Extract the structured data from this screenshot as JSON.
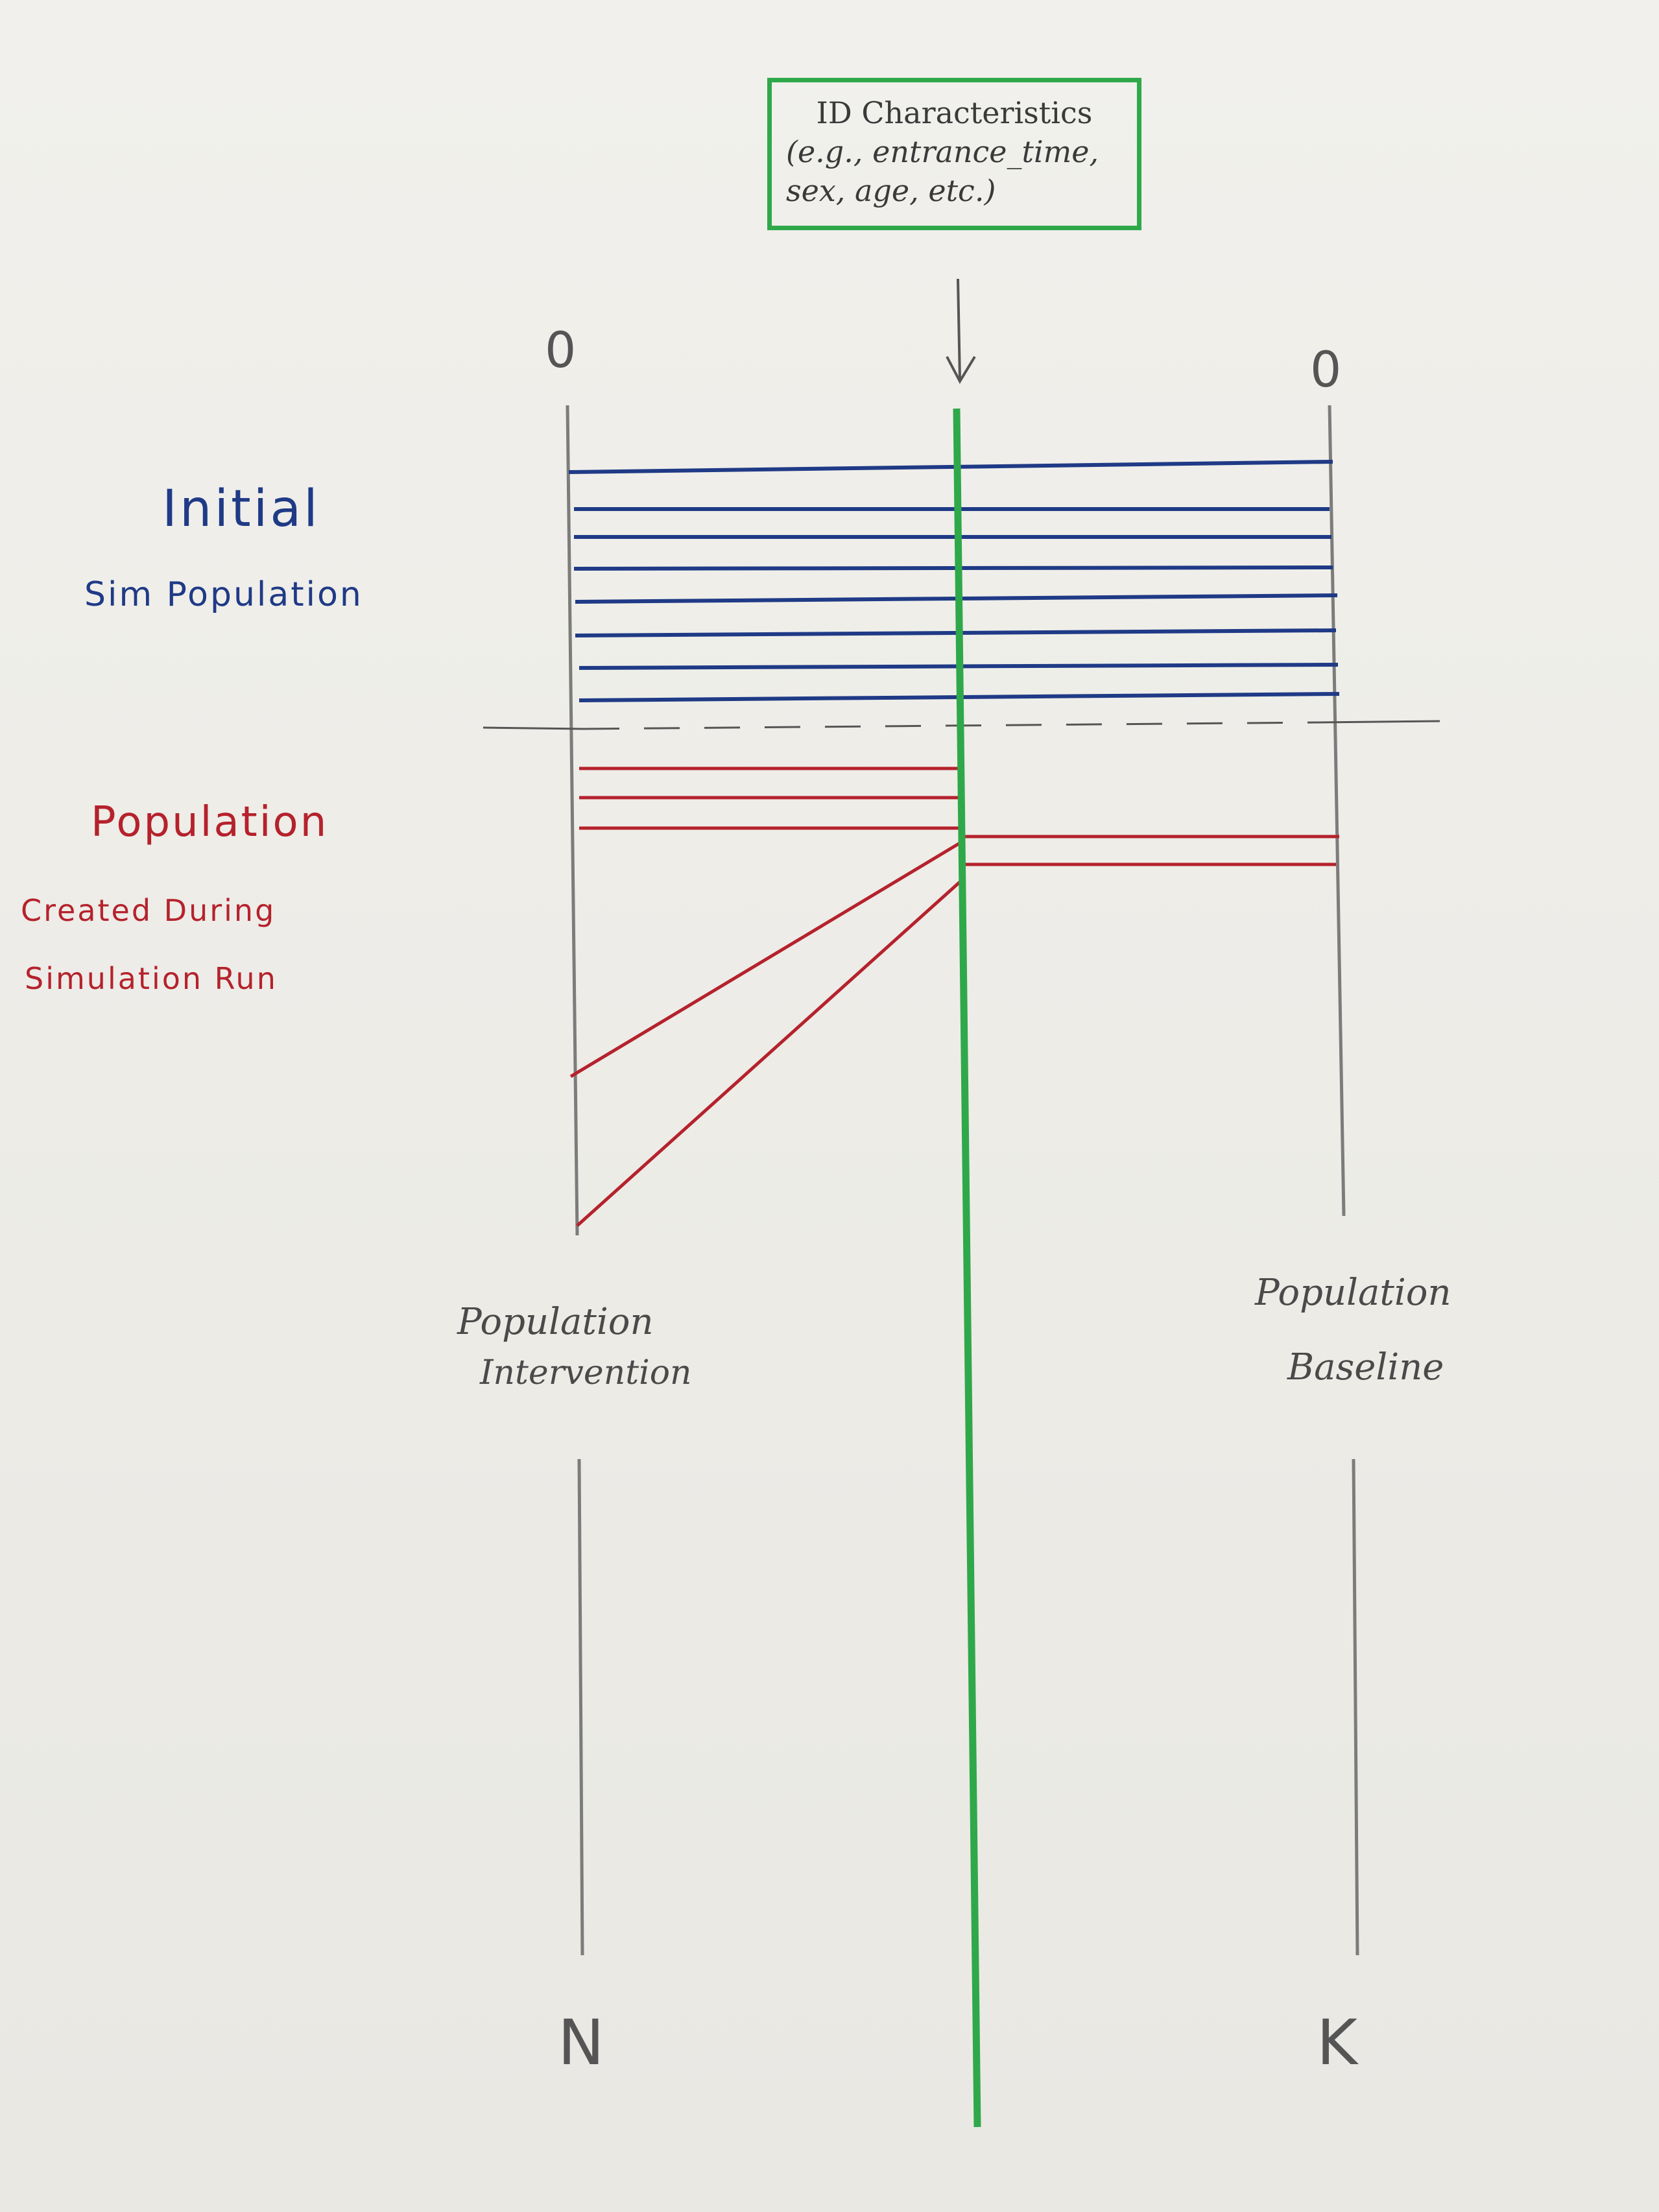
{
  "id_box": {
    "line1": "ID Characteristics",
    "line2": "(e.g., entrance_time,",
    "line3": "sex, age, etc.)"
  },
  "initial_population": {
    "title": "Initial",
    "subtitle": "Sim Population",
    "color": "#1f3a86"
  },
  "created_population": {
    "title": "Population",
    "line1": "Created During",
    "line2": "Simulation Run",
    "color": "#b5222c"
  },
  "intervention": {
    "line1": "Population",
    "line2": "Intervention",
    "top_label": "0",
    "bottom_label": "N"
  },
  "baseline": {
    "line1": "Population",
    "line2": "Baseline",
    "top_label": "0",
    "bottom_label": "K"
  },
  "colors": {
    "id_line": "#2fa84a",
    "axis": "#7a7a7a",
    "blue": "#1f3a86",
    "red": "#b5222c"
  }
}
